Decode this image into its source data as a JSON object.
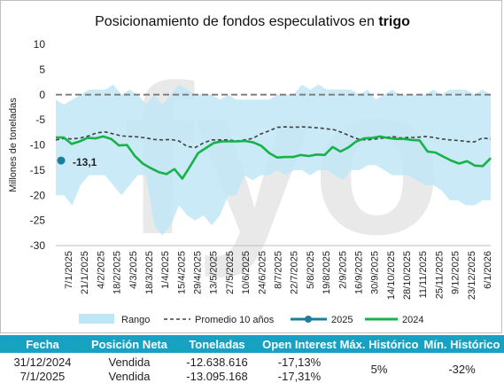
{
  "chart_data": {
    "type": "line",
    "title_prefix": "Posicionamiento de fondos especulativos en ",
    "title_bold": "trigo",
    "ylabel": "Millones de toneladas",
    "ylim": [
      -30,
      10
    ],
    "yticks": [
      "10",
      "5",
      "0",
      "-5",
      "-10",
      "-15",
      "-20",
      "-25",
      "-30"
    ],
    "x_labels": [
      "7/1/2025",
      "21/1/2025",
      "4/2/2025",
      "18/2/2025",
      "4/3/2025",
      "18/3/2025",
      "1/4/2025",
      "15/4/2025",
      "29/4/2025",
      "13/5/2025",
      "27/5/2025",
      "10/6/2025",
      "24/6/2025",
      "8/7/2025",
      "22/7/2025",
      "5/8/2025",
      "19/8/2025",
      "2/9/2025",
      "16/9/2025",
      "30/9/2025",
      "14/10/2025",
      "28/10/2025",
      "11/11/2025",
      "25/11/2025",
      "9/12/2025",
      "23/12/2025",
      "6/1/2026"
    ],
    "range_upper": [
      -1,
      -2,
      -1,
      0,
      1,
      1,
      1,
      2,
      0,
      1,
      0,
      -2,
      0,
      -2,
      0,
      2,
      1,
      0,
      0,
      0,
      -1,
      0,
      -1,
      -1,
      -1,
      -1,
      -1,
      0,
      0,
      0,
      2,
      1,
      2,
      1,
      1,
      1,
      1,
      0,
      1,
      -1,
      0,
      1,
      0,
      0,
      0,
      0,
      1,
      0,
      1,
      1,
      1,
      0,
      1,
      0
    ],
    "range_lower": [
      -20,
      -20,
      -22,
      -18,
      -16,
      -16,
      -16,
      -18,
      -20,
      -18,
      -16,
      -16,
      -26,
      -28,
      -26,
      -22,
      -24,
      -25,
      -24,
      -26,
      -24,
      -20,
      -20,
      -16,
      -17,
      -16,
      -16,
      -15,
      -16,
      -15,
      -15,
      -16,
      -15,
      -15,
      -16,
      -17,
      -15,
      -15,
      -14,
      -14,
      -15,
      -16,
      -16,
      -16,
      -17,
      -18,
      -18,
      -19,
      -21,
      -21,
      -22,
      -22,
      -21,
      -21
    ],
    "series": [
      {
        "name": "Promedio 10 años",
        "values": [
          -9.0,
          -8.7,
          -8.8,
          -8.6,
          -8.2,
          -7.6,
          -7.4,
          -7.8,
          -8.2,
          -8.3,
          -8.4,
          -8.6,
          -8.9,
          -9.0,
          -8.9,
          -9.2,
          -10.3,
          -10.5,
          -9.6,
          -9.0,
          -9.0,
          -9.0,
          -9.2,
          -9.0,
          -8.7,
          -7.8,
          -7.2,
          -6.5,
          -6.4,
          -6.5,
          -6.4,
          -6.5,
          -6.6,
          -6.8,
          -7.0,
          -7.6,
          -8.3,
          -8.9,
          -9.0,
          -8.8,
          -8.6,
          -8.3,
          -8.6,
          -8.5,
          -8.5,
          -8.3,
          -8.5,
          -8.8,
          -9.0,
          -9.1,
          -9.3,
          -9.4,
          -8.6,
          -8.8
        ]
      },
      {
        "name": "2025",
        "values": [
          -13.1
        ],
        "label": "-13,1"
      },
      {
        "name": "2024",
        "values": [
          -8.5,
          -8.5,
          -9.8,
          -9.3,
          -8.6,
          -8.7,
          -8.3,
          -8.8,
          -10.1,
          -10.0,
          -12.2,
          -13.7,
          -14.6,
          -15.4,
          -15.8,
          -14.8,
          -16.7,
          -14.2,
          -11.6,
          -10.6,
          -9.6,
          -9.3,
          -9.3,
          -9.3,
          -9.2,
          -9.5,
          -10.2,
          -11.6,
          -12.5,
          -12.4,
          -12.4,
          -12.0,
          -12.2,
          -11.9,
          -12.0,
          -10.4,
          -11.3,
          -10.5,
          -9.3,
          -8.7,
          -8.6,
          -8.3,
          -8.6,
          -8.8,
          -8.8,
          -9.0,
          -9.1,
          -11.3,
          -11.5,
          -12.3,
          -13.1,
          -13.7,
          -13.2,
          -14.1,
          -14.2,
          -12.6
        ]
      }
    ],
    "legend": [
      "Rango",
      "Promedio 10 años",
      "2025",
      "2024"
    ],
    "colors": {
      "range": "#bfe6f5",
      "avg": "#404040",
      "s2025": "#1b7f9c",
      "s2024": "#17b24a",
      "zero": "#808080",
      "watermark": "#e9e9e9"
    },
    "watermark": "fyo",
    "legend_position": "bottom"
  },
  "summary_table": {
    "headers": [
      "Fecha",
      "Posición Neta",
      "Toneladas",
      "Open Interest",
      "Máx. Histórico",
      "Mín. Histórico"
    ],
    "rows": [
      [
        "31/12/2024",
        "Vendida",
        "-12.638.616",
        "-17,13%"
      ],
      [
        "7/1/2025",
        "Vendida",
        "-13.095.168",
        "-17,31%"
      ]
    ],
    "max_hist": "5%",
    "min_hist": "-32%",
    "header_color": "#17a2c2"
  }
}
